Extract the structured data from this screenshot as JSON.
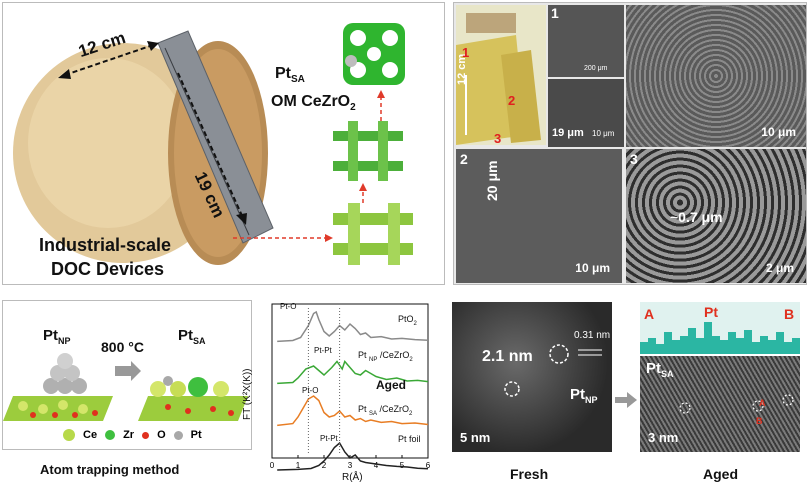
{
  "panel_a": {
    "dim_width": "12 cm",
    "dim_length": "19 cm",
    "label_pt_sa": "Pt",
    "label_pt_sa_sub": "SA",
    "label_support": "OM CeZrO",
    "label_support_sub": "2",
    "caption_line1": "Industrial-scale",
    "caption_line2": "DOC Devices"
  },
  "panel_b": {
    "n1": "1",
    "n2": "2",
    "n3": "3",
    "photo_dim": "12 cm",
    "inset_scale_top": "200 μm",
    "inset_arrow_label": "19 μm",
    "inset_scale_bottom": "10 μm",
    "sem1_scale": "10 μm",
    "sem2_thickness": "20 μm",
    "sem2_scale": "10 μm",
    "sem3_pore": "~0.7 μm",
    "sem3_scale": "2 μm",
    "marker_red_1": "1",
    "marker_red_2": "2",
    "marker_red_3": "3"
  },
  "panel_c": {
    "pt_np": "Pt",
    "pt_np_sub": "NP",
    "pt_sa": "Pt",
    "pt_sa_sub": "SA",
    "temperature": "800 °C",
    "legend": [
      {
        "label": "Ce",
        "color": "#b7d94a"
      },
      {
        "label": "Zr",
        "color": "#3fbf3f"
      },
      {
        "label": "O",
        "color": "#e0301e"
      },
      {
        "label": "Pt",
        "color": "#a8a8a8"
      }
    ],
    "caption": "Atom trapping method"
  },
  "panel_d": {
    "ylabel": "FT (K²X(K))",
    "xlabel": "R(Å)",
    "aged_label": "Aged",
    "ann_pto": "Pt-O",
    "ann_ptpt": "Pt-Pt",
    "ann_pto2": "Pt-O",
    "ann_ptpt2": "Pt-Pt"
  },
  "chart_data": {
    "type": "line",
    "xlabel": "R(Å)",
    "ylabel": "FT (K²X(K))",
    "xlim": [
      0,
      6
    ],
    "xticks": [
      "0",
      "1",
      "2",
      "3",
      "4",
      "5",
      "6"
    ],
    "series": [
      {
        "name": "PtO2",
        "color": "#8a8a8a",
        "x": [
          0.2,
          0.8,
          1.1,
          1.4,
          1.6,
          1.7,
          1.8,
          2.0,
          2.2,
          2.4,
          2.6,
          2.8,
          3.0,
          3.2,
          3.4,
          3.6,
          3.8,
          4.2,
          4.6,
          5.0,
          5.5,
          6.0
        ],
        "y": [
          0.02,
          0.05,
          0.15,
          0.55,
          0.95,
          1.0,
          0.75,
          0.35,
          0.2,
          0.35,
          0.55,
          0.4,
          0.6,
          0.45,
          0.25,
          0.3,
          0.15,
          0.18,
          0.1,
          0.12,
          0.08,
          0.06
        ]
      },
      {
        "name": "Pt NP /CeZrO2",
        "color": "#3aa836",
        "x": [
          0.2,
          0.8,
          1.0,
          1.3,
          1.6,
          1.8,
          2.0,
          2.3,
          2.5,
          2.7,
          2.8,
          3.0,
          3.2,
          3.4,
          3.6,
          3.8,
          4.0,
          4.4,
          4.8,
          5.2,
          5.6,
          6.0
        ],
        "y": [
          0.02,
          0.05,
          0.2,
          0.5,
          0.6,
          0.45,
          0.3,
          0.55,
          0.75,
          0.5,
          0.75,
          0.55,
          0.35,
          0.3,
          0.45,
          0.35,
          0.25,
          0.15,
          0.2,
          0.1,
          0.12,
          0.08
        ]
      },
      {
        "name": "Pt SA /CeZrO2",
        "color": "#e87d24",
        "x": [
          0.2,
          0.8,
          1.0,
          1.2,
          1.4,
          1.6,
          1.8,
          2.0,
          2.2,
          2.4,
          2.6,
          2.8,
          3.0,
          3.2,
          3.4,
          3.6,
          3.8,
          4.2,
          4.6,
          5.0,
          5.5,
          6.0
        ],
        "y": [
          0.02,
          0.08,
          0.3,
          0.6,
          0.9,
          1.0,
          0.85,
          0.45,
          0.3,
          0.35,
          0.5,
          0.3,
          0.35,
          0.2,
          0.25,
          0.15,
          0.2,
          0.12,
          0.15,
          0.08,
          0.1,
          0.05
        ]
      },
      {
        "name": "Pt foil",
        "color": "#222222",
        "x": [
          0.2,
          1.0,
          1.5,
          1.8,
          2.0,
          2.2,
          2.4,
          2.6,
          2.8,
          3.0,
          3.2,
          3.4,
          3.6,
          4.0,
          4.4,
          4.8,
          5.2,
          5.6,
          6.0
        ],
        "y": [
          0.0,
          0.02,
          0.05,
          0.15,
          0.3,
          0.5,
          0.75,
          0.9,
          0.6,
          0.4,
          0.5,
          0.3,
          0.25,
          0.2,
          0.15,
          0.12,
          0.1,
          0.06,
          0.04
        ]
      }
    ],
    "series_labels": [
      {
        "text": "PtO",
        "sub": "2"
      },
      {
        "text": "Pt ",
        "sub": "NP",
        "tail": " /CeZrO",
        "tail_sub": "2"
      },
      {
        "text": "Pt ",
        "sub": "SA",
        "tail": " /CeZrO",
        "tail_sub": "2"
      },
      {
        "text": "Pt foil"
      }
    ]
  },
  "panel_e": {
    "size_label": "2.1 nm",
    "lattice": "0.31 nm",
    "pt_np": "Pt",
    "pt_np_sub": "NP",
    "scale": "5 nm",
    "caption": "Fresh"
  },
  "panel_f": {
    "label_a": "A",
    "label_b": "B",
    "pt_label": "Pt",
    "pt_sa": "Pt",
    "pt_sa_sub": "SA",
    "scale": "3 nm",
    "mark_a": "A",
    "mark_b": "B",
    "caption": "Aged"
  }
}
